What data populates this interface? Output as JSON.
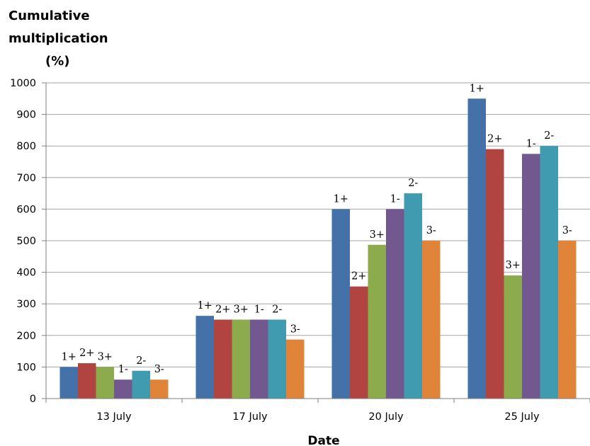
{
  "chart_data": {
    "type": "bar",
    "ylabel_lines": [
      "Cumulative",
      "multiplication",
      "(%)"
    ],
    "xlabel": "Date",
    "categories": [
      "13 July",
      "17 July",
      "20 July",
      "25 July"
    ],
    "ylim": [
      0,
      1000
    ],
    "yticks": [
      0,
      100,
      200,
      300,
      400,
      500,
      600,
      700,
      800,
      900,
      1000
    ],
    "grid": true,
    "series": [
      {
        "label": "1+",
        "color": "#4472a8",
        "values": [
          100,
          262,
          600,
          950
        ]
      },
      {
        "label": "2+",
        "color": "#b14440",
        "values": [
          112,
          250,
          355,
          790
        ]
      },
      {
        "label": "3+",
        "color": "#8cab4c",
        "values": [
          100,
          250,
          487,
          390
        ]
      },
      {
        "label": "1-",
        "color": "#73578f",
        "values": [
          60,
          250,
          600,
          775
        ]
      },
      {
        "label": "2-",
        "color": "#409bb1",
        "values": [
          88,
          250,
          650,
          800
        ]
      },
      {
        "label": "3-",
        "color": "#e0843a",
        "values": [
          60,
          187,
          500,
          500
        ]
      }
    ]
  }
}
